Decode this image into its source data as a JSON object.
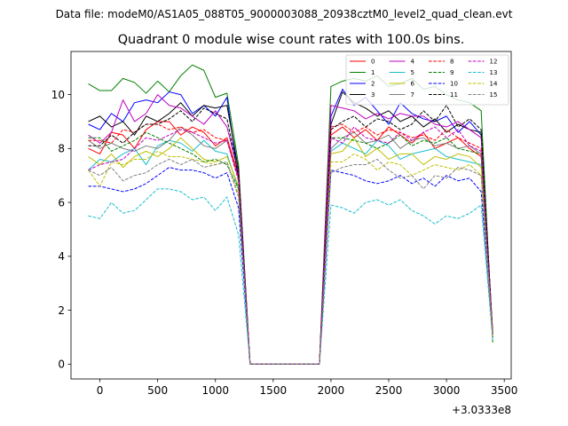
{
  "suptitle": "Data file: modeM0/AS1A05_088T05_9000003088_20938cztM0_level2_quad_clean.evt",
  "chart_data": {
    "type": "line",
    "title": "Quadrant 0 module wise count rates with 100.0s bins.",
    "xlabel": "",
    "ylabel": "",
    "x_offset_label": "+3.0333e8",
    "xlim": [
      -250,
      3560
    ],
    "ylim": [
      -0.55,
      11.6
    ],
    "xticks": [
      0,
      500,
      1000,
      1500,
      2000,
      2500,
      3000,
      3500
    ],
    "xtick_labels": [
      "0",
      "500",
      "1000",
      "1500",
      "2000",
      "2500",
      "3000",
      "3500"
    ],
    "yticks": [
      0,
      2,
      4,
      6,
      8,
      10
    ],
    "ytick_labels": [
      "0",
      "2",
      "4",
      "6",
      "8",
      "10"
    ],
    "legend_position": "upper right",
    "legend_columns": 4,
    "x": [
      -100,
      0,
      100,
      200,
      300,
      400,
      500,
      600,
      700,
      800,
      900,
      1000,
      1100,
      1200,
      1300,
      1400,
      1500,
      1600,
      1700,
      1800,
      1900,
      2000,
      2100,
      2200,
      2300,
      2400,
      2500,
      2600,
      2700,
      2800,
      2900,
      3000,
      3100,
      3200,
      3300,
      3400
    ],
    "series": [
      {
        "name": "0",
        "color": "#ff0000",
        "dash": "solid",
        "values": [
          8.0,
          7.8,
          8.6,
          8.5,
          8.0,
          8.7,
          9.0,
          9.0,
          8.5,
          8.8,
          8.6,
          8.1,
          8.4,
          7.0,
          0,
          0,
          0,
          0,
          0,
          0,
          0,
          8.5,
          8.8,
          8.4,
          8.7,
          8.3,
          8.8,
          8.5,
          8.2,
          8.6,
          8.0,
          8.2,
          8.4,
          8.0,
          7.7,
          1.2
        ]
      },
      {
        "name": "1",
        "color": "#008000",
        "dash": "solid",
        "values": [
          10.4,
          10.15,
          10.15,
          10.6,
          10.45,
          10.05,
          10.5,
          10.1,
          10.7,
          11.1,
          10.9,
          9.9,
          10.05,
          7.4,
          0,
          0,
          0,
          0,
          0,
          0,
          0,
          10.3,
          10.5,
          10.6,
          10.5,
          10.7,
          10.3,
          10.4,
          10.6,
          10.2,
          10.3,
          10.0,
          9.8,
          9.7,
          9.4,
          0.8
        ]
      },
      {
        "name": "2",
        "color": "#0000ff",
        "dash": "solid",
        "values": [
          8.9,
          8.7,
          9.3,
          9.0,
          9.7,
          9.8,
          9.7,
          10.1,
          10.0,
          9.3,
          9.6,
          9.2,
          9.9,
          6.8,
          0,
          0,
          0,
          0,
          0,
          0,
          0,
          9.2,
          10.2,
          9.6,
          9.9,
          9.4,
          8.9,
          9.7,
          9.3,
          9.1,
          9.0,
          9.2,
          8.6,
          9.0,
          8.5,
          1.0
        ]
      },
      {
        "name": "3",
        "color": "#000000",
        "dash": "solid",
        "values": [
          9.0,
          9.2,
          8.8,
          9.0,
          8.5,
          9.2,
          9.0,
          9.3,
          9.7,
          9.2,
          9.6,
          9.5,
          9.6,
          7.2,
          0,
          0,
          0,
          0,
          0,
          0,
          0,
          8.9,
          10.1,
          9.7,
          9.5,
          9.2,
          9.4,
          9.0,
          9.2,
          8.8,
          9.1,
          8.6,
          8.9,
          8.7,
          8.6,
          1.1
        ]
      },
      {
        "name": "4",
        "color": "#bf00bf",
        "dash": "solid",
        "values": [
          8.5,
          8.2,
          8.6,
          9.8,
          9.0,
          9.3,
          10.0,
          9.6,
          9.5,
          9.2,
          8.9,
          9.4,
          8.8,
          7.1,
          0,
          0,
          0,
          0,
          0,
          0,
          0,
          9.6,
          9.5,
          9.4,
          9.1,
          9.3,
          9.1,
          9.3,
          9.2,
          9.2,
          8.9,
          8.8,
          9.0,
          8.7,
          8.4,
          1.2
        ]
      },
      {
        "name": "5",
        "color": "#17becf",
        "dash": "solid",
        "values": [
          7.2,
          7.6,
          7.5,
          7.8,
          8.0,
          7.4,
          8.1,
          8.3,
          8.2,
          7.9,
          8.3,
          7.9,
          7.8,
          6.5,
          0,
          0,
          0,
          0,
          0,
          0,
          0,
          7.9,
          8.2,
          8.0,
          7.8,
          8.3,
          8.1,
          7.6,
          7.8,
          7.9,
          8.0,
          7.7,
          7.6,
          7.5,
          7.4,
          1.1
        ]
      },
      {
        "name": "6",
        "color": "#bfbf00",
        "dash": "solid",
        "values": [
          7.7,
          7.4,
          7.8,
          7.3,
          7.7,
          7.9,
          7.7,
          8.0,
          8.4,
          8.0,
          7.6,
          7.5,
          7.7,
          6.6,
          0,
          0,
          0,
          0,
          0,
          0,
          0,
          7.8,
          7.9,
          8.4,
          7.7,
          8.0,
          7.6,
          7.8,
          7.8,
          7.4,
          7.7,
          7.6,
          7.8,
          7.7,
          7.3,
          1.0
        ]
      },
      {
        "name": "7",
        "color": "#7f7f7f",
        "dash": "solid",
        "values": [
          8.3,
          8.0,
          8.2,
          8.0,
          7.9,
          8.1,
          8.0,
          8.3,
          8.8,
          8.5,
          8.1,
          8.0,
          8.3,
          6.9,
          0,
          0,
          0,
          0,
          0,
          0,
          0,
          8.0,
          8.4,
          8.6,
          8.2,
          8.3,
          8.5,
          8.0,
          8.3,
          8.4,
          8.1,
          8.2,
          8.0,
          8.1,
          7.8,
          1.1
        ]
      },
      {
        "name": "8",
        "color": "#ff0000",
        "dash": "dashed",
        "values": [
          8.3,
          8.3,
          8.2,
          8.7,
          8.6,
          8.9,
          8.9,
          8.7,
          8.8,
          8.6,
          8.7,
          8.4,
          8.3,
          6.9,
          0,
          0,
          0,
          0,
          0,
          0,
          0,
          8.8,
          8.9,
          8.6,
          8.8,
          8.5,
          8.7,
          8.6,
          8.4,
          8.5,
          8.3,
          8.7,
          8.4,
          8.2,
          8.0,
          1.1
        ]
      },
      {
        "name": "9",
        "color": "#008000",
        "dash": "dashed",
        "values": [
          8.4,
          8.4,
          7.9,
          8.1,
          8.3,
          8.6,
          8.4,
          8.2,
          8.0,
          7.8,
          7.5,
          7.6,
          7.4,
          6.5,
          0,
          0,
          0,
          0,
          0,
          0,
          0,
          8.4,
          8.4,
          8.3,
          8.2,
          8.0,
          8.2,
          8.5,
          8.1,
          8.3,
          8.2,
          8.4,
          8.0,
          7.9,
          7.8,
          1.0
        ]
      },
      {
        "name": "10",
        "color": "#0000ff",
        "dash": "dashed",
        "values": [
          6.6,
          6.6,
          6.5,
          6.4,
          6.5,
          6.7,
          7.0,
          7.3,
          7.2,
          7.2,
          7.1,
          6.9,
          7.1,
          5.8,
          0,
          0,
          0,
          0,
          0,
          0,
          0,
          7.2,
          7.1,
          7.0,
          6.8,
          6.7,
          6.8,
          7.0,
          6.7,
          6.9,
          6.6,
          7.0,
          6.8,
          6.9,
          6.4,
          1.0
        ]
      },
      {
        "name": "11",
        "color": "#000000",
        "dash": "dashed",
        "values": [
          8.1,
          8.1,
          8.5,
          8.2,
          8.6,
          8.9,
          8.9,
          9.1,
          9.4,
          9.0,
          9.5,
          9.3,
          9.1,
          7.0,
          0,
          0,
          0,
          0,
          0,
          0,
          0,
          8.7,
          9.0,
          9.2,
          8.8,
          9.1,
          9.0,
          8.7,
          8.9,
          9.4,
          9.0,
          9.6,
          8.8,
          9.1,
          8.7,
          1.1
        ]
      },
      {
        "name": "12",
        "color": "#bf00bf",
        "dash": "dashed",
        "values": [
          7.2,
          7.4,
          7.5,
          7.6,
          8.0,
          8.4,
          8.3,
          8.5,
          8.7,
          8.6,
          8.4,
          8.2,
          8.3,
          6.8,
          0,
          0,
          0,
          0,
          0,
          0,
          0,
          8.4,
          8.2,
          8.8,
          8.4,
          8.3,
          8.2,
          8.6,
          8.3,
          8.6,
          8.8,
          8.4,
          8.7,
          8.1,
          7.9,
          1.1
        ]
      },
      {
        "name": "13",
        "color": "#17becf",
        "dash": "dashed",
        "values": [
          5.5,
          5.4,
          6.0,
          5.6,
          5.7,
          6.1,
          6.5,
          6.5,
          6.4,
          6.1,
          6.2,
          5.7,
          6.2,
          4.8,
          0,
          0,
          0,
          0,
          0,
          0,
          0,
          5.9,
          5.8,
          5.6,
          6.0,
          6.1,
          5.9,
          6.1,
          5.7,
          5.5,
          5.2,
          5.5,
          5.4,
          5.6,
          5.9,
          0.9
        ]
      },
      {
        "name": "14",
        "color": "#bfbf00",
        "dash": "dashed",
        "values": [
          7.2,
          6.6,
          7.5,
          7.4,
          7.6,
          7.6,
          7.9,
          7.7,
          7.7,
          7.6,
          7.5,
          7.4,
          7.5,
          6.3,
          0,
          0,
          0,
          0,
          0,
          0,
          0,
          7.5,
          7.5,
          7.8,
          7.6,
          7.2,
          7.5,
          7.4,
          7.0,
          7.2,
          7.4,
          7.3,
          7.2,
          7.4,
          7.0,
          1.0
        ]
      },
      {
        "name": "15",
        "color": "#7f7f7f",
        "dash": "dashed",
        "values": [
          7.2,
          7.0,
          7.3,
          6.8,
          7.0,
          7.1,
          7.4,
          7.6,
          7.4,
          7.6,
          7.3,
          7.4,
          7.5,
          6.2,
          0,
          0,
          0,
          0,
          0,
          0,
          0,
          7.1,
          7.3,
          7.4,
          7.4,
          7.6,
          7.2,
          6.9,
          7.0,
          6.5,
          7.0,
          6.9,
          7.3,
          7.2,
          7.0,
          1.0
        ]
      }
    ]
  }
}
